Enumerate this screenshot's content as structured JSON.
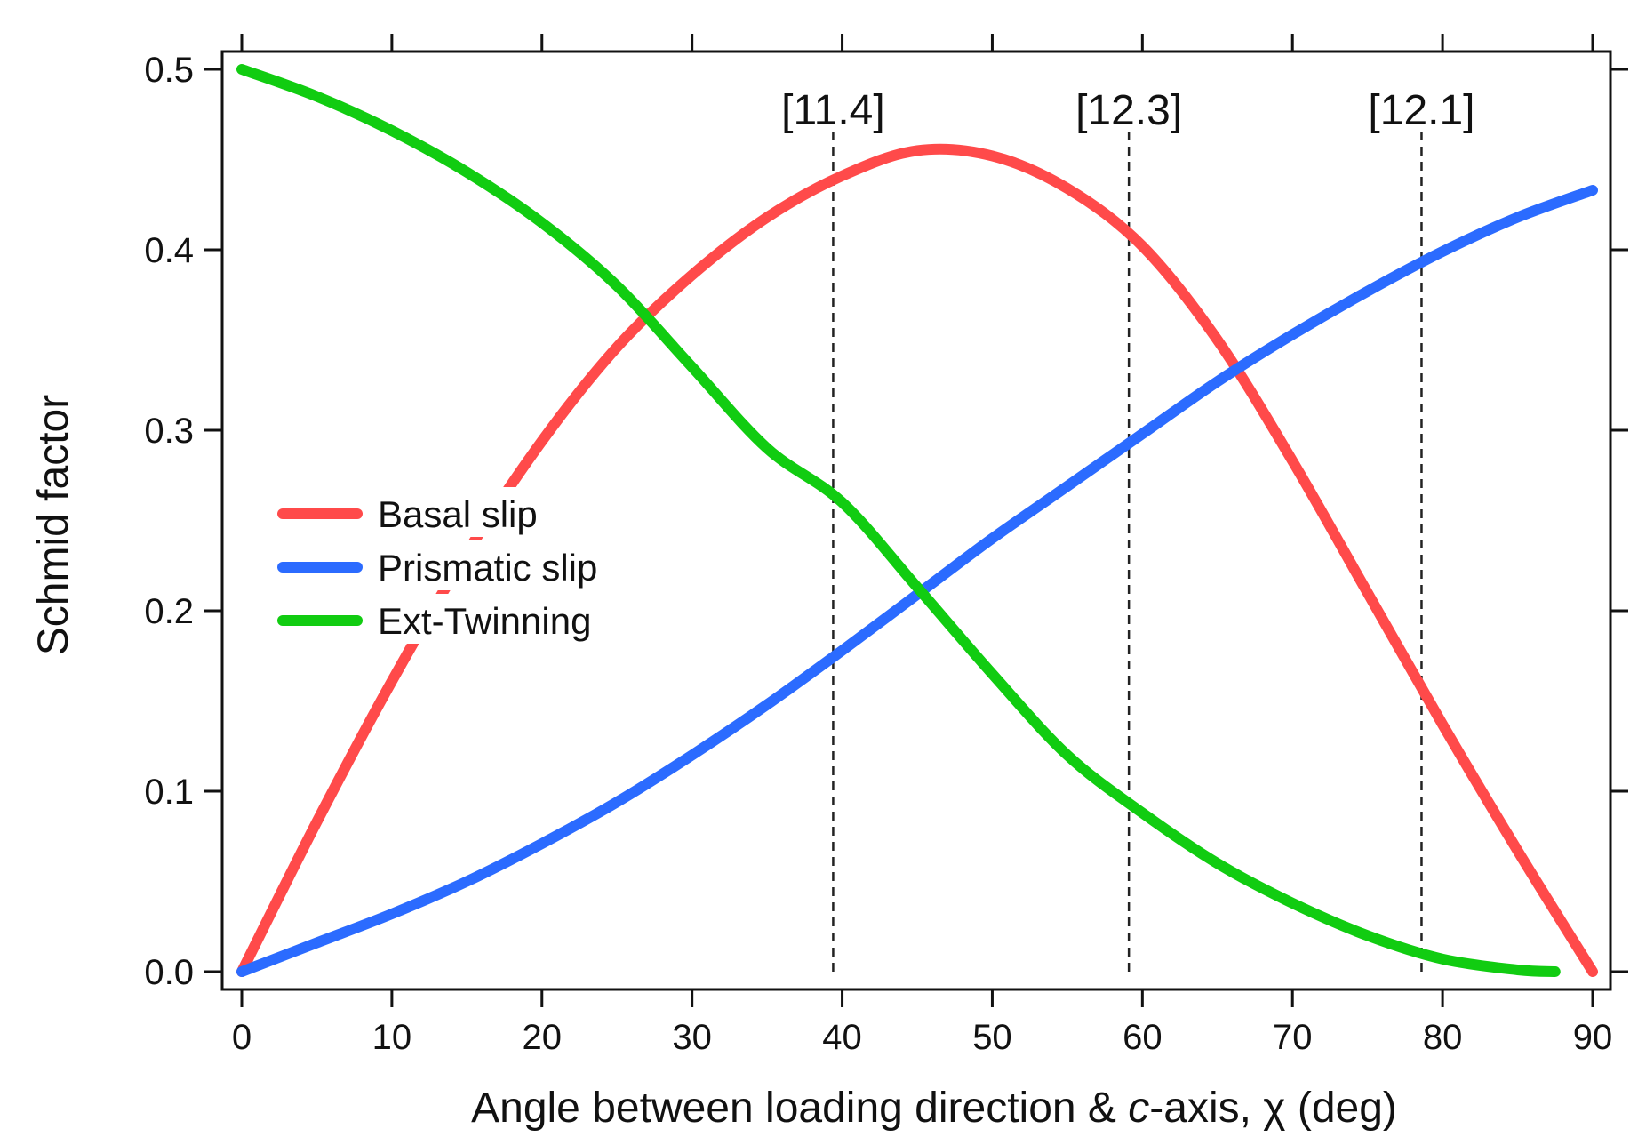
{
  "chart_data": {
    "type": "line",
    "title": "",
    "xlabel_parts": [
      "Angle between loading direction & ",
      "c",
      "-axis, χ (deg)"
    ],
    "ylabel": "Schmid factor",
    "xlim": [
      0,
      90
    ],
    "ylim": [
      0,
      0.5
    ],
    "xticks": [
      0,
      10,
      20,
      30,
      40,
      50,
      60,
      70,
      80,
      90
    ],
    "xtick_labels": [
      "0",
      "10",
      "20",
      "30",
      "40",
      "50",
      "60",
      "70",
      "80",
      "90"
    ],
    "yticks": [
      0,
      0.1,
      0.2,
      0.3,
      0.4,
      0.5
    ],
    "ytick_labels": [
      "0.0",
      "0.1",
      "0.2",
      "0.3",
      "0.4",
      "0.5"
    ],
    "grid": false,
    "legend_position": "middle-left",
    "series": [
      {
        "name": "Basal slip",
        "color": "#ff4a4a",
        "x": [
          0,
          5,
          10,
          15,
          20,
          25,
          30,
          35,
          40,
          45,
          50,
          55,
          60,
          65,
          70,
          75,
          80,
          85,
          90
        ],
        "y": [
          0.0,
          0.083,
          0.161,
          0.232,
          0.294,
          0.346,
          0.386,
          0.418,
          0.441,
          0.455,
          0.452,
          0.434,
          0.402,
          0.35,
          0.283,
          0.21,
          0.137,
          0.067,
          0.0
        ]
      },
      {
        "name": "Prismatic slip",
        "color": "#2b6bff",
        "x": [
          0,
          5,
          10,
          15,
          20,
          25,
          30,
          35,
          40,
          45,
          50,
          55,
          60,
          65,
          70,
          75,
          80,
          85,
          90
        ],
        "y": [
          0.0,
          0.016,
          0.032,
          0.05,
          0.071,
          0.094,
          0.12,
          0.148,
          0.178,
          0.209,
          0.24,
          0.269,
          0.298,
          0.327,
          0.353,
          0.377,
          0.399,
          0.418,
          0.433
        ]
      },
      {
        "name": "Ext-Twinning",
        "color": "#11cc11",
        "x": [
          0,
          5,
          10,
          15,
          20,
          25,
          30,
          35,
          40,
          45,
          50,
          55,
          60,
          65,
          70,
          75,
          80,
          85,
          87.5
        ],
        "y": [
          0.5,
          0.485,
          0.466,
          0.443,
          0.415,
          0.38,
          0.335,
          0.29,
          0.26,
          0.213,
          0.165,
          0.12,
          0.088,
          0.06,
          0.038,
          0.02,
          0.007,
          0.001,
          0.0
        ]
      }
    ],
    "annotations": [
      {
        "label": "[11.4]",
        "x": 39.4
      },
      {
        "label": "[12.3]",
        "x": 59.1
      },
      {
        "label": "[12.1]",
        "x": 78.6
      }
    ]
  }
}
